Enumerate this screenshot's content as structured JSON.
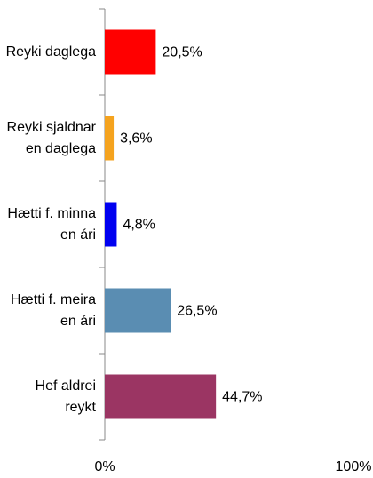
{
  "chart_data": {
    "type": "hbar",
    "categories": [
      "Reyki daglega",
      "Reyki sjaldnar en daglega",
      "Hætti f. minna en ári",
      "Hætti f. meira en ári",
      "Hef aldrei reykt"
    ],
    "values": [
      20.5,
      3.6,
      4.8,
      26.5,
      44.7
    ],
    "value_labels": [
      "20,5%",
      "3,6%",
      "4,8%",
      "26,5%",
      "44,7%"
    ],
    "colors": [
      "#ff0000",
      "#f5a31f",
      "#0000f0",
      "#5a8db2",
      "#9b3563"
    ],
    "xlim": [
      0,
      100
    ],
    "xticks": [
      {
        "value": 0,
        "label": "0%"
      },
      {
        "value": 100,
        "label": "100%"
      }
    ]
  }
}
